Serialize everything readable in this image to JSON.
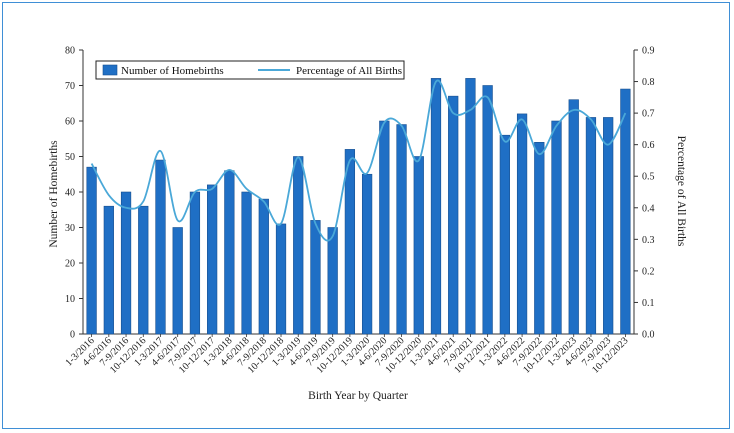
{
  "chart_data": {
    "type": "bar",
    "title": "",
    "xlabel": "Birth Year by Quarter",
    "ylabel": "Number of Homebirths",
    "y2label": "Percentage of All Births",
    "ylim": [
      0,
      80
    ],
    "y2lim": [
      0,
      0.9
    ],
    "yticks": [
      "0",
      "10",
      "20",
      "30",
      "40",
      "50",
      "60",
      "70",
      "80"
    ],
    "y2ticks": [
      "0.0",
      "0.1",
      "0.2",
      "0.3",
      "0.4",
      "0.5",
      "0.6",
      "0.7",
      "0.8",
      "0.9"
    ],
    "categories": [
      "1-3/2016",
      "4-6/2016",
      "7-9/2016",
      "10-12/2016",
      "1-3/2017",
      "4-6/2017",
      "7-9/2017",
      "10-12/2017",
      "1-3/2018",
      "4-6/2018",
      "7-9/2018",
      "10-12/2018",
      "1-3/2019",
      "4-6/2019",
      "7-9/2019",
      "10-12/2019",
      "1-3/2020",
      "4-6/2020",
      "7-9/2020",
      "10-12/2020",
      "1-3/2021",
      "4-6/2021",
      "7-9/2021",
      "10-12/2021",
      "1-3/2022",
      "4-6/2022",
      "7-9/2022",
      "10-12/2022",
      "1-3/2023",
      "4-6/2023",
      "7-9/2023",
      "10-12/2023"
    ],
    "series": [
      {
        "name": "Number of Homebirths",
        "type": "bar",
        "axis": "left",
        "color": "#1f6fc5",
        "values": [
          47,
          36,
          40,
          36,
          49,
          30,
          40,
          42,
          46,
          40,
          38,
          31,
          50,
          32,
          30,
          52,
          45,
          60,
          59,
          50,
          72,
          67,
          72,
          70,
          56,
          62,
          54,
          60,
          66,
          61,
          61,
          69
        ]
      },
      {
        "name": "Percentage of All Births",
        "type": "line",
        "axis": "right",
        "color": "#4aa8d8",
        "values": [
          0.54,
          0.44,
          0.4,
          0.42,
          0.58,
          0.36,
          0.45,
          0.46,
          0.52,
          0.46,
          0.42,
          0.35,
          0.56,
          0.35,
          0.31,
          0.55,
          0.51,
          0.67,
          0.66,
          0.55,
          0.8,
          0.7,
          0.71,
          0.75,
          0.61,
          0.68,
          0.57,
          0.66,
          0.71,
          0.68,
          0.6,
          0.7
        ]
      }
    ],
    "legend": {
      "placement": "top-left",
      "items": [
        "Number of Homebirths",
        "Percentage of All Births"
      ]
    }
  }
}
